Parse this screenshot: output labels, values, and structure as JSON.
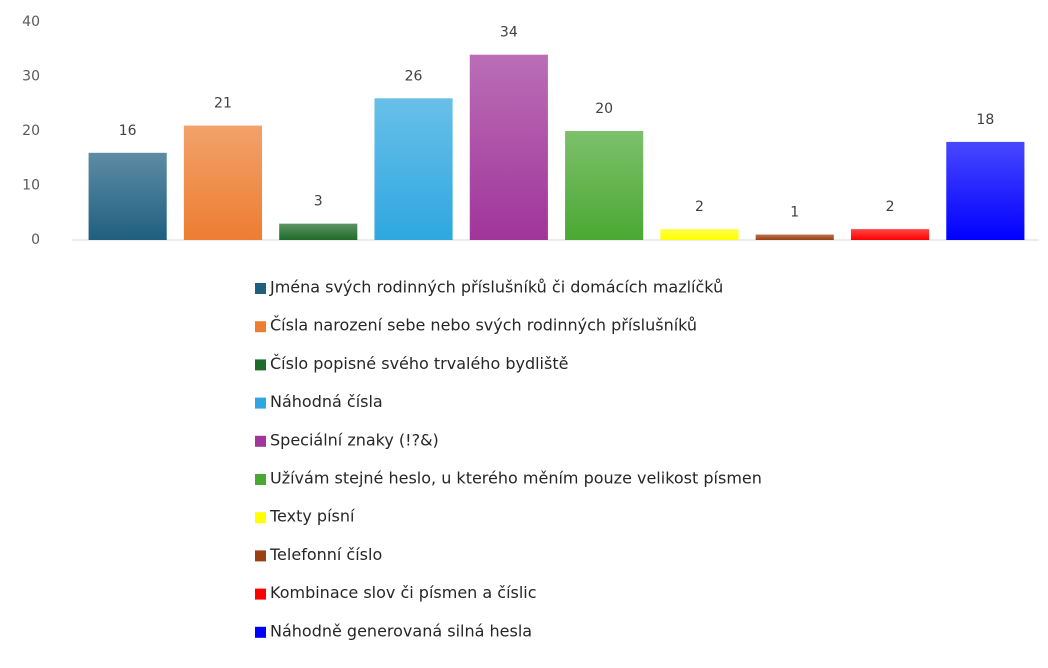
{
  "chart_data": {
    "type": "bar",
    "categories": [
      "Jména svých rodinných příslušníků či domácích mazlíčků",
      "Čísla narození sebe nebo svých rodinných příslušníků",
      "Číslo popisné svého trvalého bydliště",
      "Náhodná čísla",
      "Speciální znaky (!?&)",
      "Užívám stejné heslo, u kterého měním pouze velikost písmen",
      "Texty písní",
      "Telefonní číslo",
      "Kombinace slov či písmen a číslic",
      "Náhodně generovaná silná hesla"
    ],
    "values": [
      16,
      21,
      3,
      26,
      34,
      20,
      2,
      1,
      2,
      18
    ],
    "colors": [
      "#1f5f80",
      "#ed7d31",
      "#1e6b2a",
      "#2ea7e0",
      "#a0359a",
      "#4aa832",
      "#ffff00",
      "#9c3d12",
      "#ff0000",
      "#0000ff"
    ],
    "ylim": [
      0,
      40
    ],
    "yticks": [
      0,
      10,
      20,
      30,
      40
    ],
    "grid": false,
    "legend": "bottom"
  }
}
